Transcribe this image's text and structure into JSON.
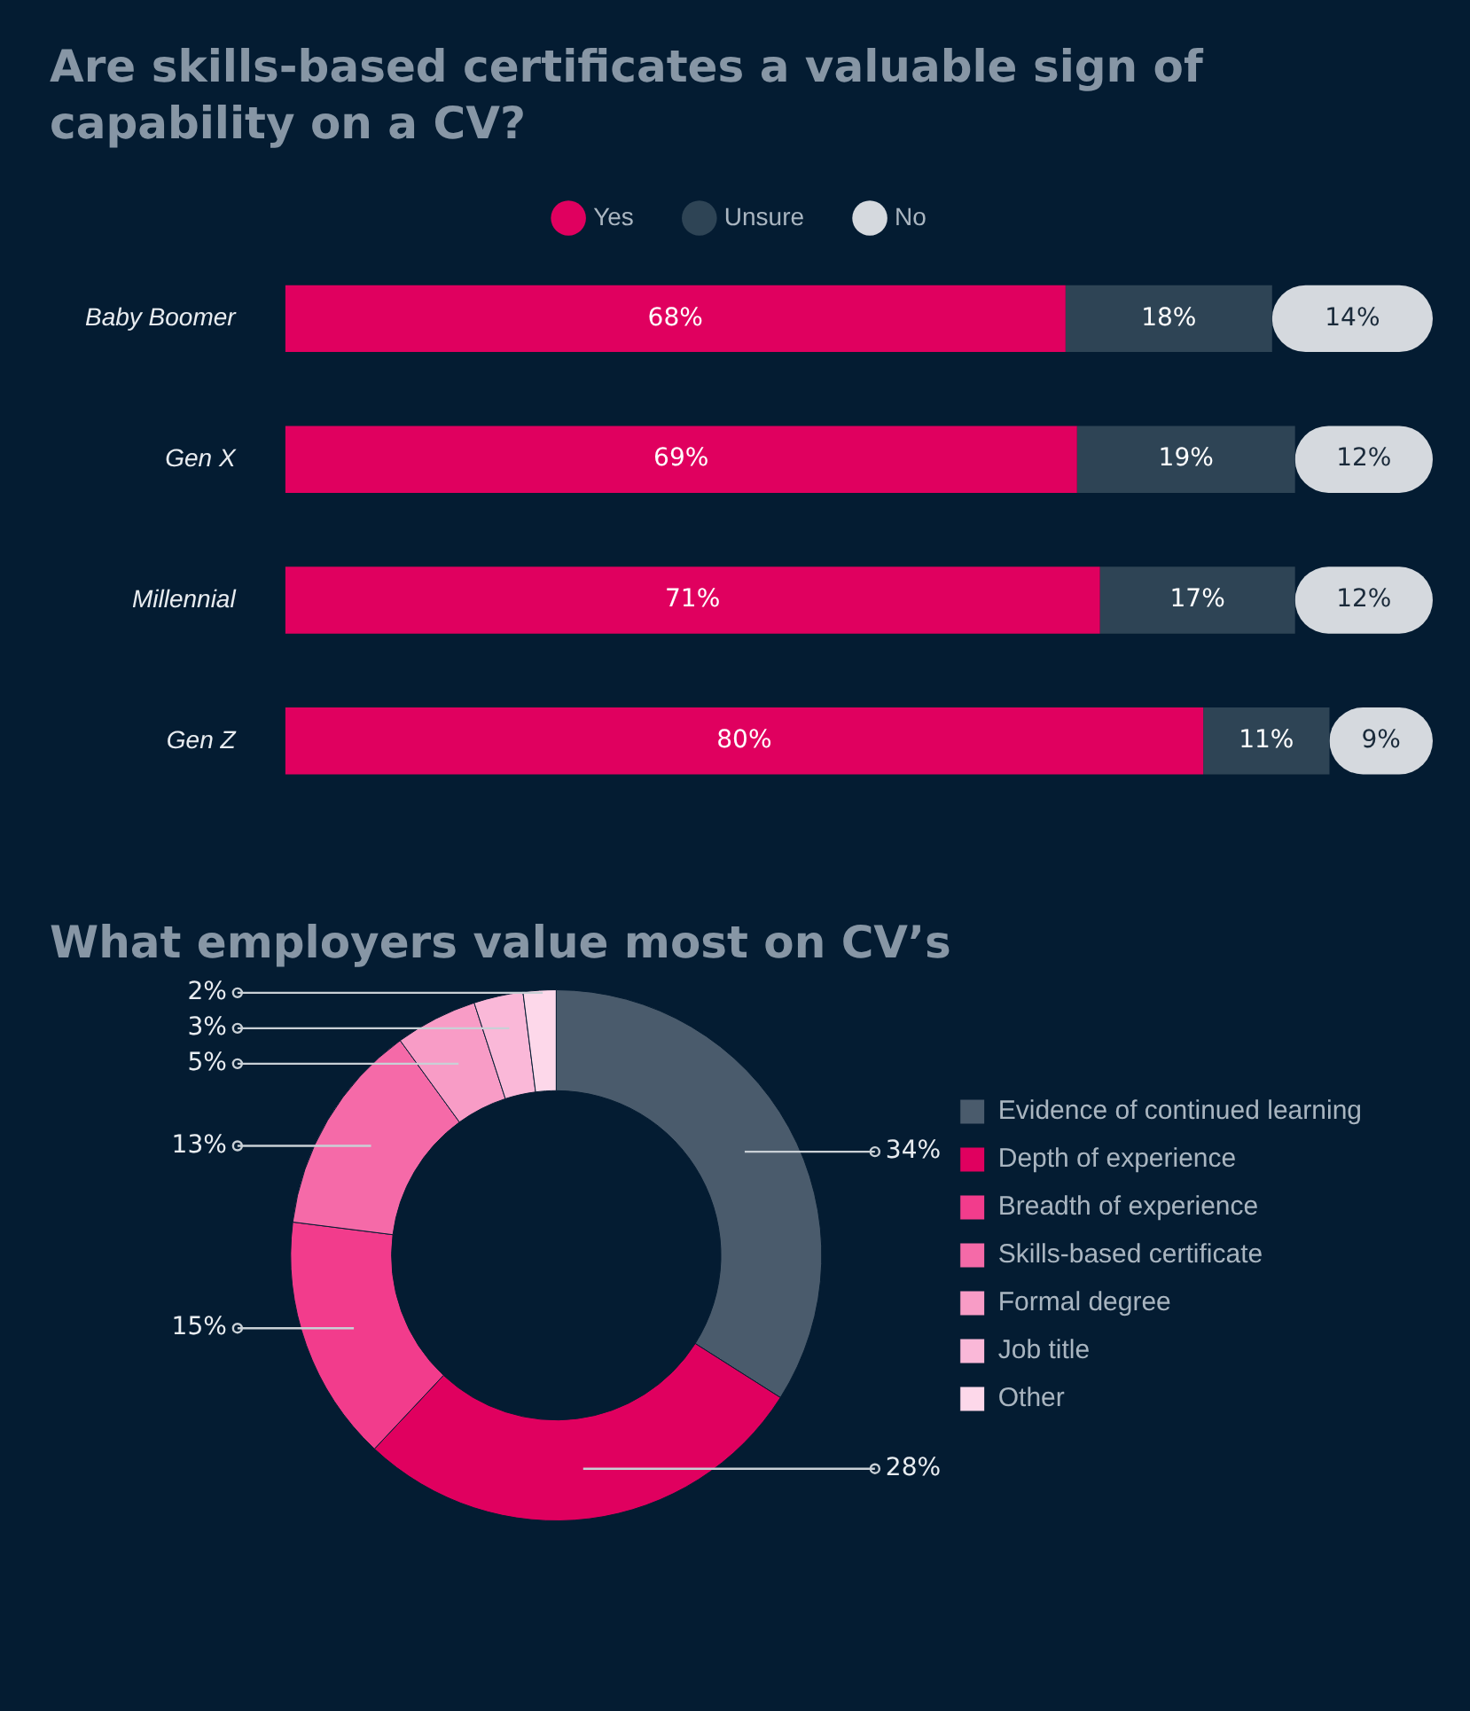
{
  "chart_data": [
    {
      "type": "bar",
      "orientation": "horizontal",
      "stacked": true,
      "title": "Are skills-based certificates a valuable sign of capability on a CV?",
      "categories": [
        "Baby Boomer",
        "Gen X",
        "Millennial",
        "Gen Z"
      ],
      "series": [
        {
          "name": "Yes",
          "color": "#e0005f",
          "values": [
            68,
            69,
            71,
            80
          ],
          "value_labels": [
            "68%",
            "69%",
            "71%",
            "80%"
          ]
        },
        {
          "name": "Unsure",
          "color": "#2e4455",
          "values": [
            18,
            19,
            17,
            11
          ],
          "value_labels": [
            "18%",
            "19%",
            "17%",
            "11%"
          ]
        },
        {
          "name": "No",
          "color": "#d5d9de",
          "values": [
            14,
            12,
            12,
            9
          ],
          "value_labels": [
            "14%",
            "12%",
            "12%",
            "9%"
          ]
        }
      ],
      "legend": "top"
    },
    {
      "type": "donut",
      "title": "What employers value most on CV’s",
      "categories": [
        "Evidence of continued learning",
        "Depth of experience",
        "Breadth of experience",
        "Skills-based certificate",
        "Formal degree",
        "Job title",
        "Other"
      ],
      "values": [
        34,
        28,
        15,
        13,
        5,
        3,
        2
      ],
      "value_labels": [
        "34%",
        "28%",
        "15%",
        "13%",
        "5%",
        "3%",
        "2%"
      ],
      "colors": [
        "#4a5b6c",
        "#e0005f",
        "#f23c8c",
        "#f56aa8",
        "#f89cc6",
        "#fab8d8",
        "#fdd8ea"
      ],
      "legend": "right"
    }
  ]
}
